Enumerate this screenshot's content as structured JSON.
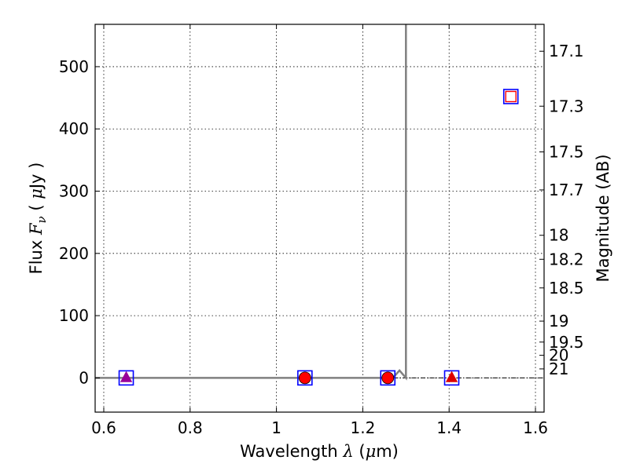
{
  "chart_data": {
    "type": "scatter",
    "xlabel": "Wavelength  λ (μm)",
    "ylabel": "Flux  Fν  ( μJy )",
    "y2label": "Magnitude (AB)",
    "xlim": [
      0.58,
      1.62
    ],
    "ylim": [
      -55,
      568
    ],
    "grid": true,
    "x_ticks": [
      {
        "value": 0.6,
        "label": "0.6"
      },
      {
        "value": 0.8,
        "label": "0.8"
      },
      {
        "value": 1.0,
        "label": "1"
      },
      {
        "value": 1.2,
        "label": "1.2"
      },
      {
        "value": 1.4,
        "label": "1.4"
      },
      {
        "value": 1.6,
        "label": "1.6"
      }
    ],
    "y_ticks": [
      {
        "value": 0,
        "label": "0"
      },
      {
        "value": 100,
        "label": "100"
      },
      {
        "value": 200,
        "label": "200"
      },
      {
        "value": 300,
        "label": "300"
      },
      {
        "value": 400,
        "label": "400"
      },
      {
        "value": 500,
        "label": "500"
      }
    ],
    "mag_ticks": [
      {
        "mag": 17.1,
        "label": "17.1"
      },
      {
        "mag": 17.3,
        "label": "17.3"
      },
      {
        "mag": 17.5,
        "label": "17.5"
      },
      {
        "mag": 17.7,
        "label": "17.7"
      },
      {
        "mag": 18,
        "label": "18"
      },
      {
        "mag": 18.2,
        "label": "18.2"
      },
      {
        "mag": 18.5,
        "label": "18.5"
      },
      {
        "mag": 19,
        "label": "19"
      },
      {
        "mag": 19.5,
        "label": "19.5"
      },
      {
        "mag": 20,
        "label": "20"
      },
      {
        "mag": 21,
        "label": "21"
      }
    ],
    "model_line": {
      "color": "#808080",
      "x": [
        0.58,
        1.27,
        1.285,
        1.3,
        1.3
      ],
      "y": [
        0,
        0,
        12,
        0,
        568
      ]
    },
    "zero_line": {
      "x": [
        0.58,
        1.62
      ],
      "y": [
        0,
        0
      ],
      "color": "#000000"
    },
    "squares": {
      "color": "#0000ff",
      "points": [
        {
          "x": 0.652,
          "y": 0
        },
        {
          "x": 1.066,
          "y": 0
        },
        {
          "x": 1.258,
          "y": 0
        },
        {
          "x": 1.406,
          "y": 0
        },
        {
          "x": 1.543,
          "y": 452
        }
      ]
    },
    "inner_square": {
      "x": 1.543,
      "y": 452,
      "color": "#ff0000"
    },
    "circles": {
      "color": "#ff0000",
      "points": [
        {
          "x": 1.066,
          "y": 0
        },
        {
          "x": 1.258,
          "y": 0
        }
      ]
    },
    "triangles": [
      {
        "x": 0.652,
        "y": 0,
        "color": "#990099"
      },
      {
        "x": 1.406,
        "y": 0,
        "color": "#dd0000"
      }
    ]
  }
}
